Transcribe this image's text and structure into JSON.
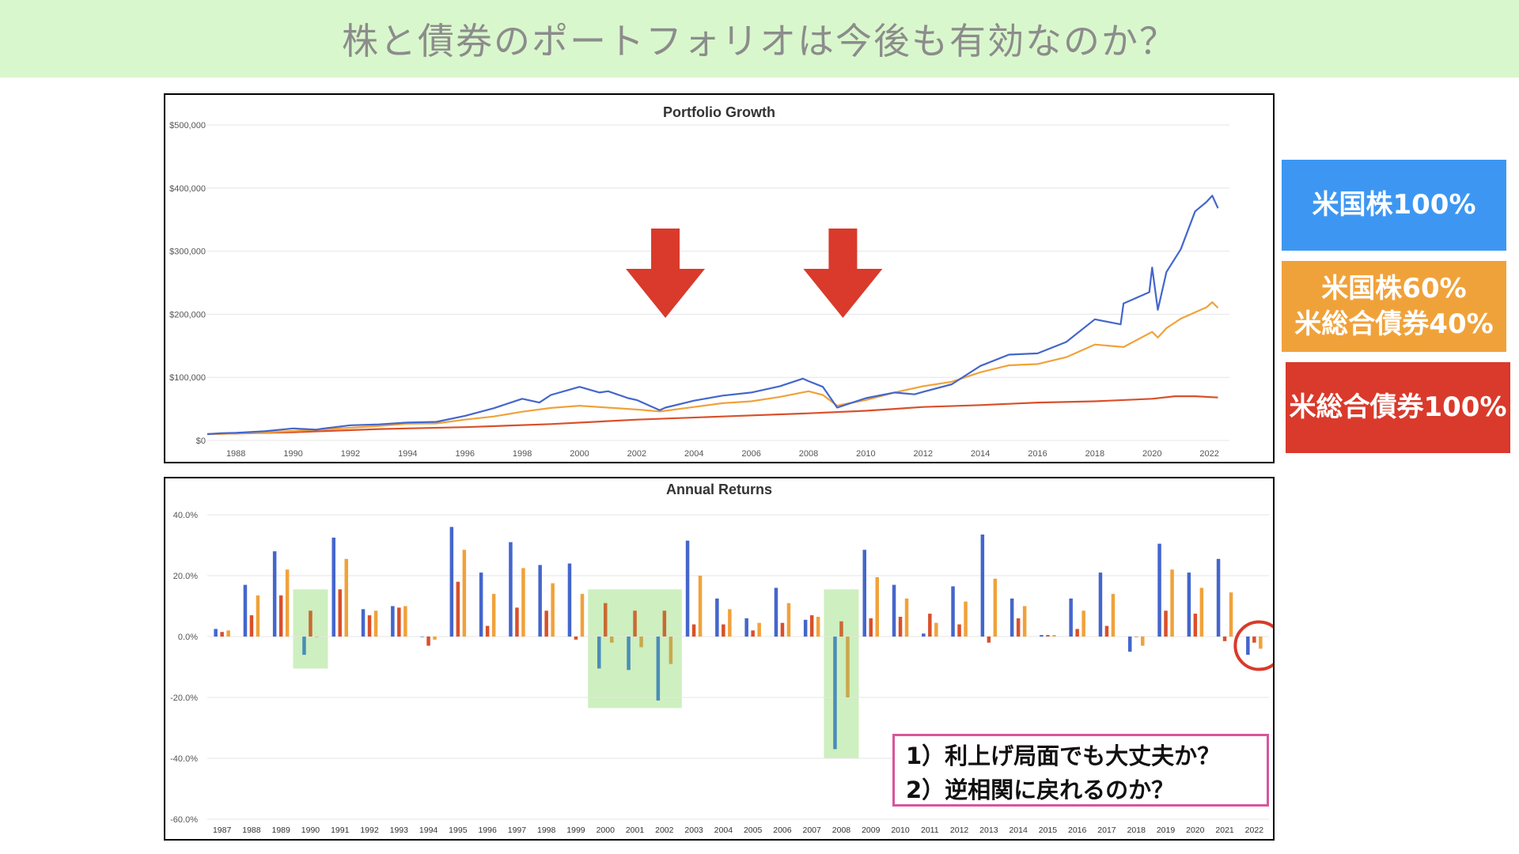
{
  "page": {
    "heading": "株と債券のポートフォリオは今後も有効なのか？"
  },
  "legend": [
    {
      "lines": [
        "米国株100%"
      ],
      "color": "#3d97f2"
    },
    {
      "lines": [
        "米国株60%",
        "米総合債券40%"
      ],
      "color": "#f0a23a"
    },
    {
      "lines": [
        "米総合債券100%"
      ],
      "color": "#d93a2b"
    }
  ],
  "notes": [
    "1）利上げ局面でも大丈夫か？",
    "2）逆相関に戻れるのか？"
  ],
  "colors": {
    "stock": "#4466cc",
    "mix": "#f0a23a",
    "bond": "#d9502a",
    "highlight": "#c6ecb4",
    "arrow": "#d93a2b",
    "circle": "#d93a2b"
  },
  "chart_data": [
    {
      "type": "line",
      "title": "Portfolio Growth",
      "xlabel": "",
      "ylabel": "",
      "xlim": [
        1987,
        2022.7
      ],
      "ylim": [
        0,
        500000
      ],
      "yticks": [
        0,
        100000,
        200000,
        300000,
        400000,
        500000
      ],
      "ytick_labels": [
        "$0",
        "$100,000",
        "$200,000",
        "$300,000",
        "$400,000",
        "$500,000"
      ],
      "xtick_labels": [
        "1988",
        "1990",
        "1992",
        "1994",
        "1996",
        "1998",
        "2000",
        "2002",
        "2004",
        "2006",
        "2008",
        "2010",
        "2012",
        "2014",
        "2016",
        "2018",
        "2020",
        "2022"
      ],
      "grid": true,
      "series": [
        {
          "key": "stock",
          "x": [
            1987.0,
            1987.5,
            1988.0,
            1989.0,
            1990.0,
            1990.8,
            1991.0,
            1992.0,
            1993.0,
            1994.0,
            1995.0,
            1996.0,
            1997.0,
            1998.0,
            1998.6,
            1999.0,
            2000.0,
            2000.7,
            2001.0,
            2001.7,
            2002.0,
            2002.8,
            2003.0,
            2004.0,
            2005.0,
            2006.0,
            2007.0,
            2007.8,
            2008.0,
            2008.5,
            2009.0,
            2009.2,
            2010.0,
            2011.0,
            2011.7,
            2012.0,
            2013.0,
            2014.0,
            2015.0,
            2016.0,
            2017.0,
            2018.0,
            2018.9,
            2019.0,
            2019.9,
            2020.0,
            2020.2,
            2020.5,
            2021.0,
            2021.5,
            2021.9,
            2022.1,
            2022.3
          ],
          "y": [
            10000,
            11500,
            12000,
            14500,
            19000,
            17000,
            18500,
            24000,
            25500,
            28500,
            29500,
            39000,
            51000,
            66000,
            60000,
            72000,
            85000,
            76000,
            78000,
            67000,
            64000,
            48000,
            52000,
            63000,
            71000,
            76000,
            86000,
            98000,
            94000,
            85000,
            52000,
            55000,
            67000,
            76000,
            73000,
            77000,
            89000,
            118000,
            136000,
            138000,
            156000,
            192000,
            184000,
            217000,
            235000,
            274000,
            207000,
            267000,
            303000,
            363000,
            378000,
            388000,
            368000
          ]
        },
        {
          "key": "mix",
          "x": [
            1987.0,
            1988.0,
            1989.0,
            1990.0,
            1991.0,
            1992.0,
            1993.0,
            1994.0,
            1995.0,
            1996.0,
            1997.0,
            1998.0,
            1999.0,
            2000.0,
            2001.0,
            2002.0,
            2002.8,
            2003.0,
            2004.0,
            2005.0,
            2006.0,
            2007.0,
            2008.0,
            2008.5,
            2009.0,
            2009.2,
            2010.0,
            2011.0,
            2012.0,
            2013.0,
            2014.0,
            2015.0,
            2016.0,
            2017.0,
            2018.0,
            2019.0,
            2020.0,
            2020.2,
            2020.5,
            2021.0,
            2021.9,
            2022.1,
            2022.3
          ],
          "y": [
            10000,
            11000,
            12500,
            15000,
            17500,
            20000,
            23000,
            26500,
            27000,
            33000,
            38000,
            45500,
            51500,
            55000,
            52000,
            49000,
            46000,
            47000,
            53000,
            59000,
            62000,
            69000,
            78000,
            72000,
            55000,
            57000,
            64000,
            76000,
            86000,
            93000,
            108000,
            119000,
            121000,
            132000,
            152000,
            148000,
            172000,
            163000,
            178000,
            193000,
            211000,
            219000,
            210000
          ]
        },
        {
          "key": "bond",
          "x": [
            1987.0,
            1990.0,
            1993.0,
            1996.0,
            1999.0,
            2002.0,
            2005.0,
            2008.0,
            2010.0,
            2012.0,
            2014.0,
            2016.0,
            2018.0,
            2020.0,
            2020.8,
            2021.5,
            2022.3
          ],
          "y": [
            10000,
            13000,
            18000,
            21000,
            26000,
            33000,
            38000,
            43000,
            47000,
            53000,
            56000,
            60000,
            62000,
            66000,
            70000,
            70000,
            68000
          ]
        }
      ],
      "annotations": [
        {
          "type": "arrow-down",
          "x": 2003.0
        },
        {
          "type": "arrow-down",
          "x": 2009.2
        }
      ]
    },
    {
      "type": "bar",
      "title": "Annual Returns",
      "xlabel": "",
      "ylabel": "",
      "ylim": [
        -60,
        40
      ],
      "yticks": [
        -60,
        -40,
        -20,
        0,
        20,
        40
      ],
      "ytick_labels": [
        "-60.0%",
        "-40.0%",
        "-20.0%",
        "0.0%",
        "20.0%",
        "40.0%"
      ],
      "grid": true,
      "categories": [
        "1987",
        "1988",
        "1989",
        "1990",
        "1991",
        "1992",
        "1993",
        "1994",
        "1995",
        "1996",
        "1997",
        "1998",
        "1999",
        "2000",
        "2001",
        "2002",
        "2003",
        "2004",
        "2005",
        "2006",
        "2007",
        "2008",
        "2009",
        "2010",
        "2011",
        "2012",
        "2013",
        "2014",
        "2015",
        "2016",
        "2017",
        "2018",
        "2019",
        "2020",
        "2021",
        "2022"
      ],
      "series": [
        {
          "key": "stock",
          "values": [
            2.5,
            17,
            28,
            -6,
            32.5,
            9,
            10,
            0,
            36,
            21,
            31,
            23.5,
            24,
            -10.5,
            -11,
            -21,
            31.5,
            12.5,
            6,
            16,
            5.5,
            -37,
            28.5,
            17,
            1,
            16.5,
            33.5,
            12.5,
            0.5,
            12.5,
            21,
            -5,
            30.5,
            21,
            25.5,
            -6
          ],
          "colors": [
            "#4466cc",
            "#4466cc",
            "#4466cc",
            "#4a8db8",
            "#4466cc",
            "#4466cc",
            "#4466cc",
            "#4466cc",
            "#4466cc",
            "#4466cc",
            "#4466cc",
            "#4466cc",
            "#4466cc",
            "#4a8db8",
            "#4a8db8",
            "#4a8db8",
            "#4466cc",
            "#4466cc",
            "#4466cc",
            "#4466cc",
            "#4466cc",
            "#4a8db8",
            "#4466cc",
            "#4466cc",
            "#4466cc",
            "#4466cc",
            "#4466cc",
            "#4466cc",
            "#4466cc",
            "#4466cc",
            "#4466cc",
            "#4466cc",
            "#4466cc",
            "#4466cc",
            "#4466cc",
            "#4466cc"
          ]
        },
        {
          "key": "bond",
          "values": [
            1.5,
            7,
            13.5,
            8.5,
            15.5,
            7,
            9.5,
            -3,
            18,
            3.5,
            9.5,
            8.5,
            -1,
            11,
            8.5,
            8.5,
            4,
            4,
            2,
            4.5,
            7,
            5,
            6,
            6.5,
            7.5,
            4,
            -2,
            6,
            0.5,
            2.5,
            3.5,
            0,
            8.5,
            7.5,
            -1.5,
            -2
          ],
          "colors": [
            "#d9502a",
            "#d9502a",
            "#d9502a",
            "#c86a32",
            "#d9502a",
            "#d9502a",
            "#d9502a",
            "#d9502a",
            "#d9502a",
            "#d9502a",
            "#d9502a",
            "#d9502a",
            "#d9502a",
            "#c86a32",
            "#c86a32",
            "#c86a32",
            "#d9502a",
            "#d9502a",
            "#d9502a",
            "#d9502a",
            "#d9502a",
            "#c86a32",
            "#d9502a",
            "#d9502a",
            "#d9502a",
            "#d9502a",
            "#d9502a",
            "#d9502a",
            "#d9502a",
            "#d9502a",
            "#d9502a",
            "#d9502a",
            "#d9502a",
            "#d9502a",
            "#d9502a",
            "#d9502a"
          ]
        },
        {
          "key": "mix",
          "values": [
            2,
            13.5,
            22,
            0,
            25.5,
            8.5,
            10,
            -1,
            28.5,
            14,
            22.5,
            17.5,
            14,
            -2,
            -3.5,
            -9,
            20,
            9,
            4.5,
            11,
            6.5,
            -20,
            19.5,
            12.5,
            4.5,
            11.5,
            19,
            10,
            0.5,
            8.5,
            14,
            -3,
            22,
            16,
            14.5,
            -4
          ],
          "colors": [
            "#f0a23a",
            "#f0a23a",
            "#f0a23a",
            "#c9a84c",
            "#f0a23a",
            "#f0a23a",
            "#f0a23a",
            "#f0a23a",
            "#f0a23a",
            "#f0a23a",
            "#f0a23a",
            "#f0a23a",
            "#f0a23a",
            "#c9a84c",
            "#c9a84c",
            "#c9a84c",
            "#f0a23a",
            "#f0a23a",
            "#f0a23a",
            "#f0a23a",
            "#f0a23a",
            "#c9a84c",
            "#f0a23a",
            "#f0a23a",
            "#f0a23a",
            "#f0a23a",
            "#f0a23a",
            "#f0a23a",
            "#f0a23a",
            "#f0a23a",
            "#f0a23a",
            "#f0a23a",
            "#f0a23a",
            "#f0a23a",
            "#f0a23a",
            "#f0a23a"
          ]
        }
      ],
      "highlight_ranges": [
        {
          "from": "1990",
          "to": "1990",
          "ymin": -10.5,
          "ymax": 15.5
        },
        {
          "from": "2000",
          "to": "2002",
          "ymin": -23.5,
          "ymax": 15.5
        },
        {
          "from": "2008",
          "to": "2008",
          "ymin": -40,
          "ymax": 15.5
        }
      ],
      "circled_category": "2022"
    }
  ]
}
